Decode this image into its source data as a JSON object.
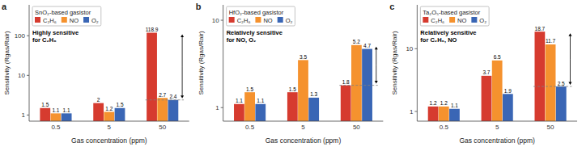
{
  "chart_data": [
    {
      "type": "bar",
      "subtitle": "a",
      "title": "SnO₂-based gasistor",
      "x_label": "Gas concentration (ppm)",
      "y_label": "Sensitivity (Rgas/Rair)",
      "annotations": [
        "Highly sensitive\nfor C₂H₆"
      ],
      "categories": [
        "0.5",
        "5",
        "50"
      ],
      "series": [
        {
          "name": "C₂H₆",
          "color": "#d63b2f",
          "values": [
            1.5,
            2.0,
            118.9
          ]
        },
        {
          "name": "NO",
          "color": "#f5922e",
          "values": [
            1.1,
            1.2,
            2.7
          ]
        },
        {
          "name": "O₂",
          "color": "#3a66b5",
          "values": [
            1.1,
            1.5,
            2.4
          ]
        }
      ],
      "reference_line": 2.4,
      "arrow_top": 118.9,
      "log": "y",
      "ylim": [
        0.7,
        600
      ],
      "yticks": [
        1,
        10,
        100
      ],
      "legend": "upper left",
      "data_labels": true
    },
    {
      "type": "bar",
      "subtitle": "b",
      "title": "HfO₂-based gasistor",
      "x_label": "Gas concentration (ppm)",
      "y_label": "Sensitivity (Rgas/Rair)",
      "annotations": [
        "Relatively sensitive\nfor NO, O₂"
      ],
      "categories": [
        "0.5",
        "5",
        "50"
      ],
      "series": [
        {
          "name": "C₂H₆",
          "color": "#d63b2f",
          "values": [
            1.1,
            1.5,
            1.8
          ]
        },
        {
          "name": "NO",
          "color": "#f5922e",
          "values": [
            1.5,
            3.5,
            5.2
          ]
        },
        {
          "name": "O₂",
          "color": "#3a66b5",
          "values": [
            1.1,
            1.3,
            4.7
          ]
        }
      ],
      "reference_line": 1.8,
      "arrow_top": 5.2,
      "log": "y",
      "ylim": [
        0.7,
        15
      ],
      "yticks": [
        1,
        10
      ],
      "legend": "upper left",
      "data_labels": true
    },
    {
      "type": "bar",
      "subtitle": "c",
      "title": "Ta₂O₅-based gasistor",
      "x_label": "Gas concentration (ppm)",
      "y_label": "Sensitivity (Rgas/Rair)",
      "annotations": [
        "Relatively sensitive\nfor C₂H₆, NO"
      ],
      "categories": [
        "0.5",
        "5",
        "50"
      ],
      "series": [
        {
          "name": "C₂H₆",
          "color": "#d63b2f",
          "values": [
            1.2,
            3.7,
            18.7
          ]
        },
        {
          "name": "NO",
          "color": "#f5922e",
          "values": [
            1.2,
            6.5,
            11.7
          ]
        },
        {
          "name": "O₂",
          "color": "#3a66b5",
          "values": [
            1.1,
            1.9,
            2.5
          ]
        }
      ],
      "reference_line": 2.5,
      "arrow_top": 18.7,
      "log": "y",
      "ylim": [
        0.7,
        50
      ],
      "yticks": [
        1,
        10
      ],
      "legend": "upper left",
      "data_labels": true
    }
  ]
}
